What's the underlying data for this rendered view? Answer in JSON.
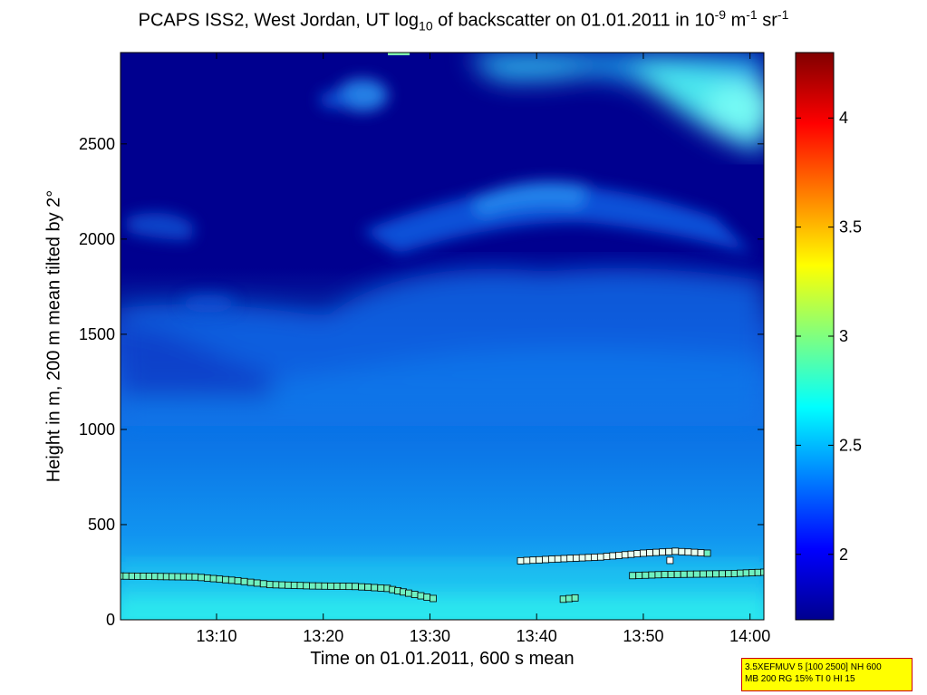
{
  "chart_data": {
    "type": "heatmap",
    "title_parts": {
      "pre": "PCAPS ISS2, West Jordan, UT log",
      "sub": "10",
      "mid": " of backscatter on 01.01.2011 in 10",
      "sup1": "-9",
      "m": " m",
      "sup2": "-1",
      "sr": " sr",
      "sup3": "-1"
    },
    "xlabel": "Time on 01.01.2011, 600 s mean",
    "ylabel": "Height in m, 200 m mean tilted by 2°",
    "x_ticks": [
      {
        "label": "13:10",
        "min": 10
      },
      {
        "label": "13:20",
        "min": 20
      },
      {
        "label": "13:30",
        "min": 30
      },
      {
        "label": "13:40",
        "min": 40
      },
      {
        "label": "13:50",
        "min": 50
      },
      {
        "label": "14:00",
        "min": 60
      }
    ],
    "xlim_minutes_after_1300": [
      1,
      61.3
    ],
    "y_ticks": [
      0,
      500,
      1000,
      1500,
      2000,
      2500
    ],
    "ylim": [
      0,
      2980
    ],
    "colorbar": {
      "colormap": "jet",
      "range": [
        1.7,
        4.3
      ],
      "ticks": [
        "2",
        "2.5",
        "3",
        "3.5",
        "4"
      ],
      "tick_values": [
        2,
        2.5,
        3,
        3.5,
        4
      ]
    },
    "cloud_base_markers": [
      {
        "name": "layer-1",
        "points": [
          [
            1,
            230
          ],
          [
            8,
            225
          ],
          [
            12,
            205
          ],
          [
            15,
            185
          ],
          [
            19,
            178
          ],
          [
            23,
            175
          ],
          [
            26,
            165
          ],
          [
            28,
            140
          ],
          [
            30.3,
            112
          ]
        ]
      },
      {
        "name": "layer-2",
        "points": [
          [
            38.5,
            310
          ],
          [
            42,
            320
          ],
          [
            46,
            330
          ],
          [
            50,
            350
          ],
          [
            53,
            360
          ],
          [
            56,
            350
          ]
        ]
      },
      {
        "name": "layer-3",
        "points": [
          [
            49,
            232
          ],
          [
            52,
            238
          ],
          [
            55,
            240
          ],
          [
            58,
            242
          ],
          [
            61.3,
            250
          ]
        ]
      },
      {
        "name": "layer-4",
        "points": [
          [
            42.5,
            108
          ],
          [
            43.6,
            115
          ]
        ]
      },
      {
        "name": "layer-5",
        "points": [
          [
            52.5,
            312
          ]
        ]
      }
    ]
  },
  "info_box": {
    "line1": "3.5XEFMUV 5 [100 2500] NH 600",
    "line2": "MB 200 RG 15% TI 0 HI 15"
  }
}
